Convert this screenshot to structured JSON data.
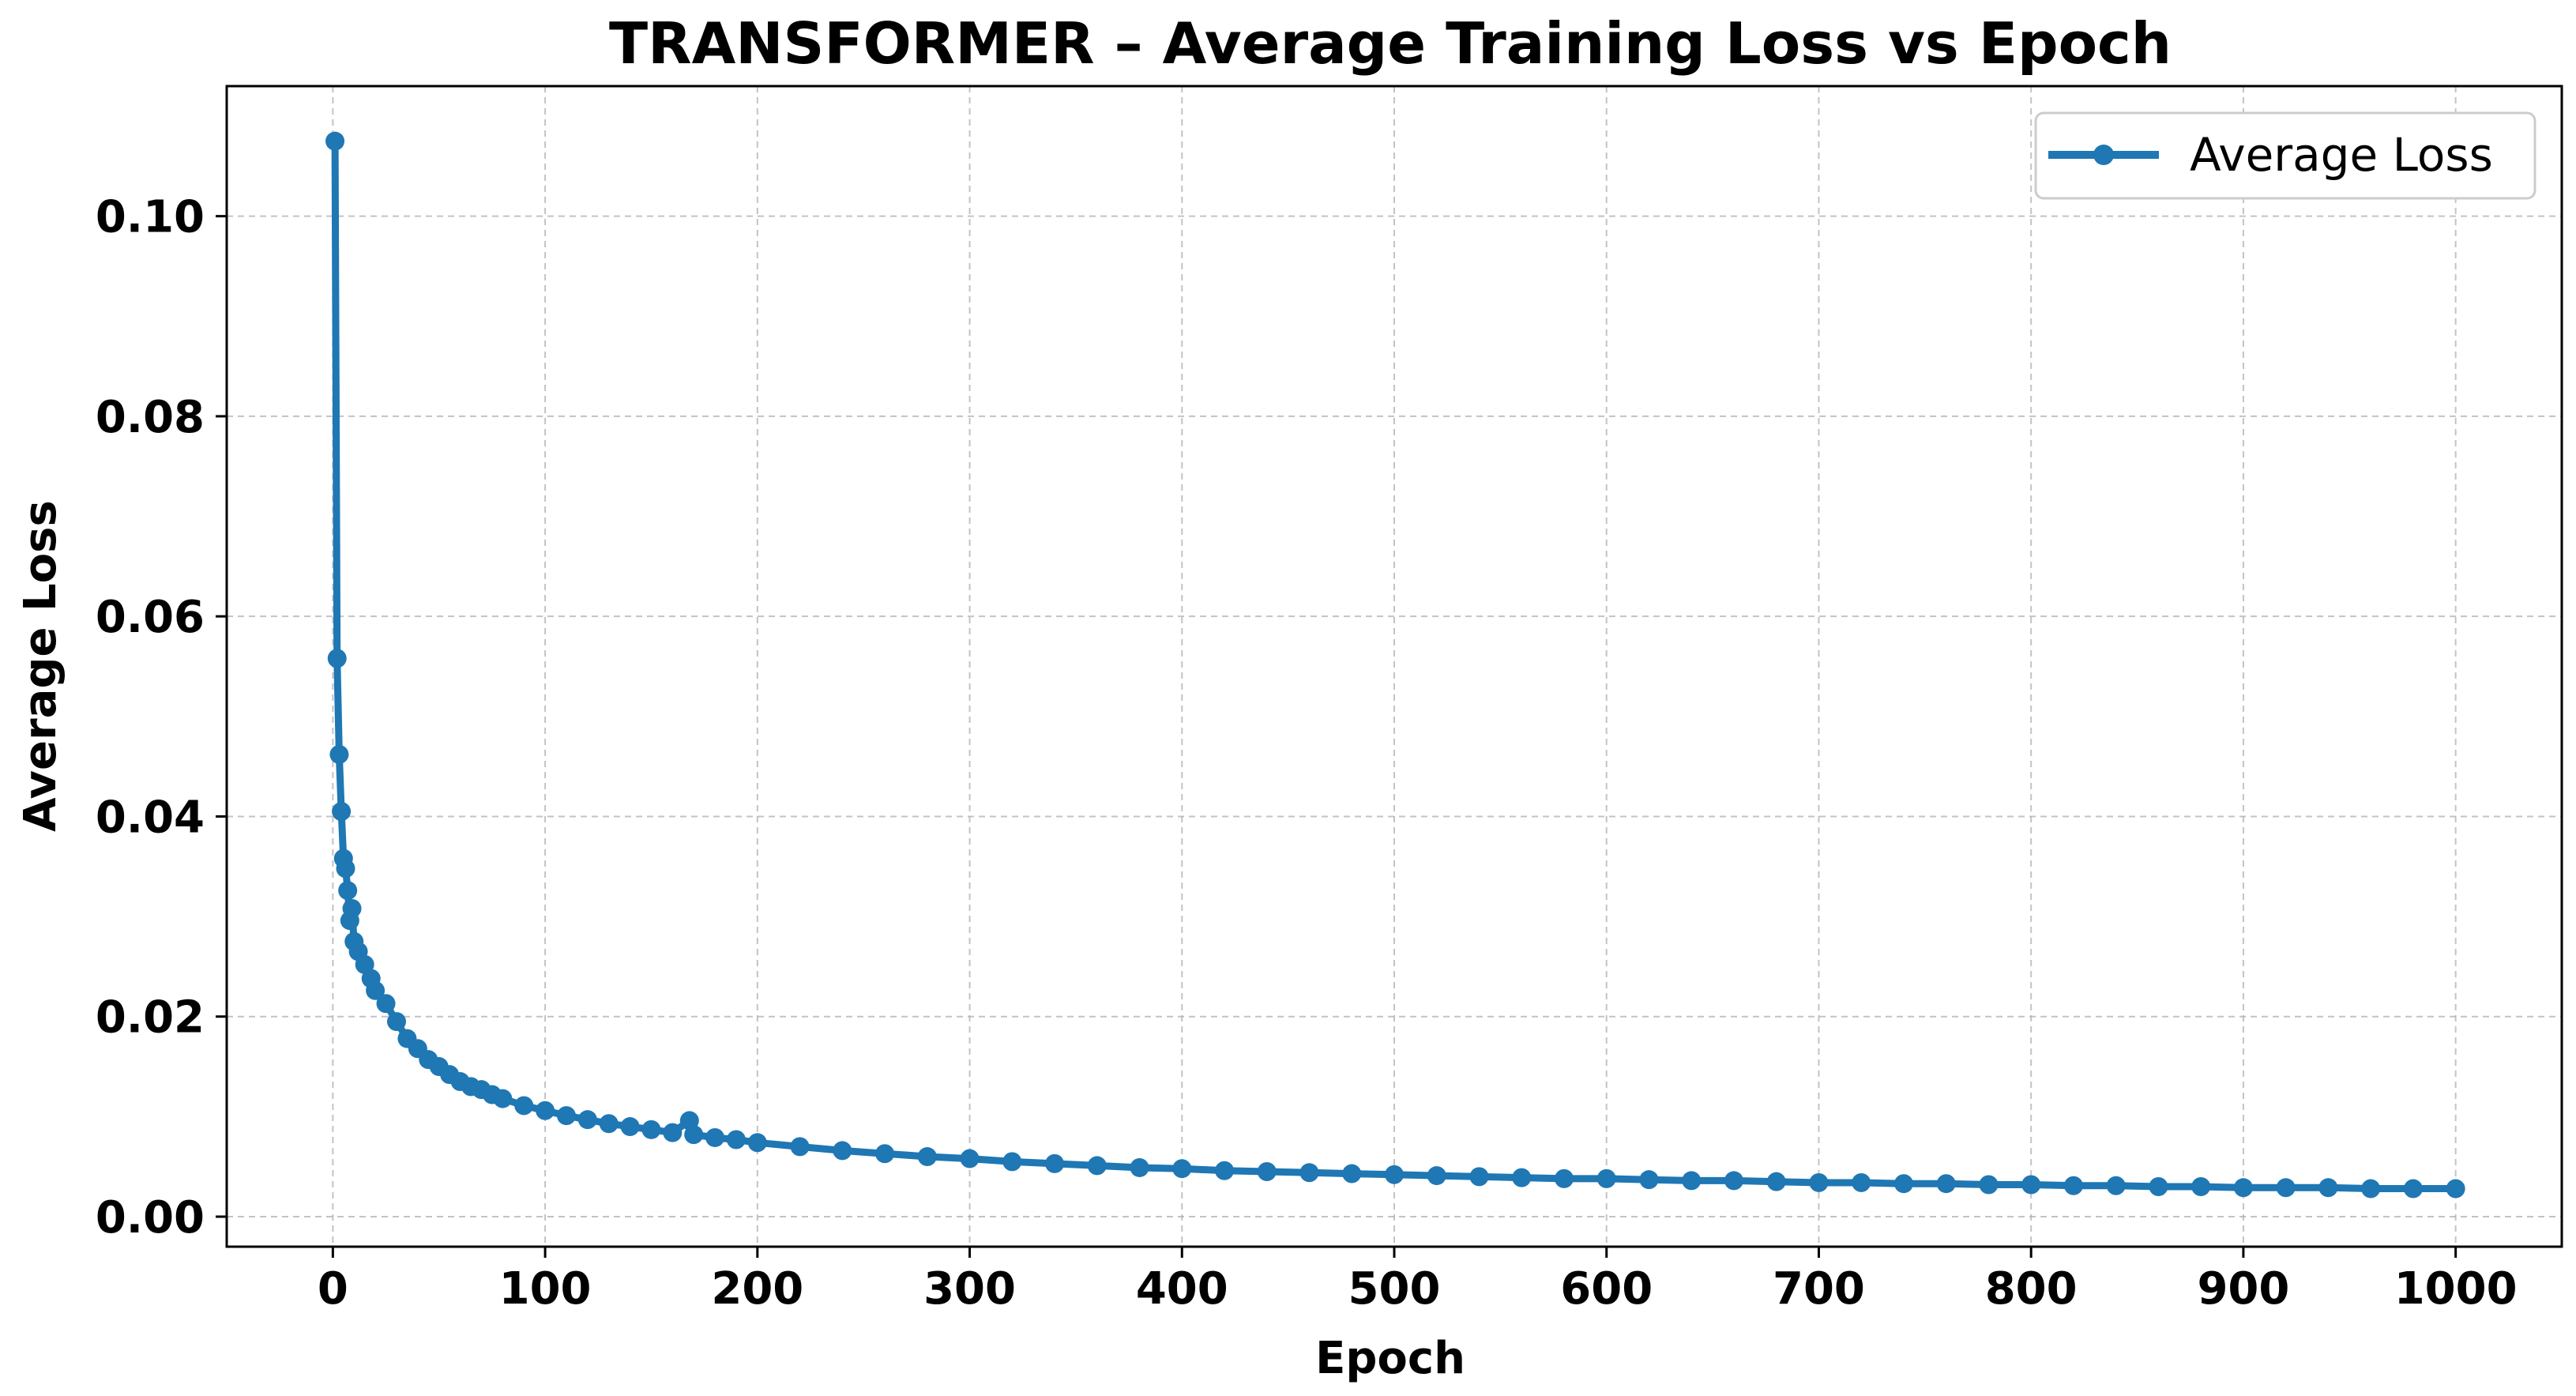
{
  "chart_data": {
    "type": "line",
    "title": "TRANSFORMER – Average Training Loss vs Epoch",
    "xlabel": "Epoch",
    "ylabel": "Average Loss",
    "xlim": [
      -50,
      1050
    ],
    "ylim": [
      -0.003,
      0.113
    ],
    "xticks": [
      0,
      100,
      200,
      300,
      400,
      500,
      600,
      700,
      800,
      900,
      1000
    ],
    "xtick_labels": [
      "0",
      "100",
      "200",
      "300",
      "400",
      "500",
      "600",
      "700",
      "800",
      "900",
      "1000"
    ],
    "yticks": [
      0.0,
      0.02,
      0.04,
      0.06,
      0.08,
      0.1
    ],
    "ytick_labels": [
      "0.00",
      "0.02",
      "0.04",
      "0.06",
      "0.08",
      "0.10"
    ],
    "grid": true,
    "legend_position": "top-right",
    "series": [
      {
        "name": "Average Loss",
        "color": "#1f77b4",
        "marker": "circle",
        "x": [
          1,
          2,
          3,
          4,
          5,
          6,
          7,
          8,
          9,
          10,
          12,
          15,
          18,
          20,
          25,
          30,
          35,
          40,
          45,
          50,
          55,
          60,
          65,
          70,
          75,
          80,
          90,
          100,
          110,
          120,
          130,
          140,
          150,
          160,
          168,
          170,
          180,
          190,
          200,
          220,
          240,
          260,
          280,
          300,
          320,
          340,
          360,
          380,
          400,
          420,
          440,
          460,
          480,
          500,
          520,
          540,
          560,
          580,
          600,
          620,
          640,
          660,
          680,
          700,
          720,
          740,
          760,
          780,
          800,
          820,
          840,
          860,
          880,
          900,
          920,
          940,
          960,
          980,
          1000
        ],
        "y": [
          0.1075,
          0.0558,
          0.0462,
          0.0405,
          0.0358,
          0.0348,
          0.0326,
          0.0296,
          0.0308,
          0.0275,
          0.0265,
          0.0252,
          0.0238,
          0.0226,
          0.0213,
          0.0195,
          0.0178,
          0.0168,
          0.0157,
          0.015,
          0.0142,
          0.0135,
          0.013,
          0.0127,
          0.0122,
          0.0118,
          0.0111,
          0.0106,
          0.0101,
          0.0097,
          0.0093,
          0.009,
          0.0087,
          0.0084,
          0.0096,
          0.0082,
          0.0079,
          0.0077,
          0.0074,
          0.007,
          0.0066,
          0.0063,
          0.006,
          0.0058,
          0.0055,
          0.0053,
          0.0051,
          0.0049,
          0.0048,
          0.0046,
          0.0045,
          0.0044,
          0.0043,
          0.0042,
          0.0041,
          0.004,
          0.0039,
          0.0038,
          0.0038,
          0.0037,
          0.0036,
          0.0036,
          0.0035,
          0.0034,
          0.0034,
          0.0033,
          0.0033,
          0.0032,
          0.0032,
          0.0031,
          0.0031,
          0.003,
          0.003,
          0.0029,
          0.0029,
          0.0029,
          0.0028,
          0.0028,
          0.0028
        ]
      }
    ]
  }
}
